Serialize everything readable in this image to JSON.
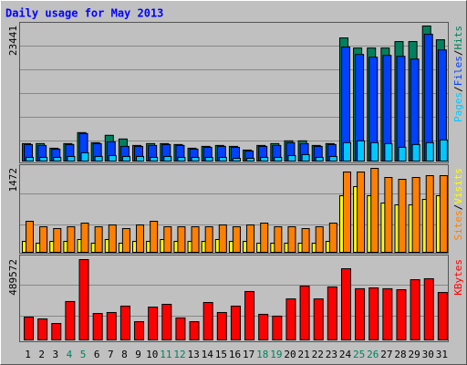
{
  "title": "Daily usage for May 2013",
  "legend_separator": "/",
  "chart_data": [
    {
      "type": "bar",
      "ylim": [
        0,
        23441
      ],
      "yticks": [
        23441
      ],
      "series": [
        {
          "name": "Hits",
          "color": "#00805c",
          "values": [
            3030,
            3030,
            2230,
            3030,
            4940,
            3190,
            4470,
            3830,
            2710,
            3030,
            3030,
            2870,
            2230,
            2550,
            2710,
            2550,
            1910,
            2710,
            3030,
            3510,
            3510,
            2710,
            3030,
            21370,
            19620,
            19620,
            19620,
            20740,
            20740,
            23441,
            21050
          ]
        },
        {
          "name": "Files",
          "color": "#0040ff",
          "values": [
            2870,
            2710,
            2070,
            2870,
            4780,
            3030,
            3350,
            2550,
            2550,
            2710,
            2870,
            2710,
            2070,
            2390,
            2550,
            2390,
            1750,
            2550,
            2710,
            3190,
            3030,
            2550,
            2870,
            19780,
            18500,
            18020,
            18340,
            18180,
            17700,
            22010,
            19300
          ]
        },
        {
          "name": "Pages",
          "color": "#00c8ff",
          "values": [
            640,
            640,
            640,
            800,
            1440,
            800,
            960,
            800,
            800,
            640,
            800,
            640,
            640,
            640,
            640,
            480,
            480,
            640,
            640,
            960,
            1120,
            640,
            800,
            3190,
            3510,
            3190,
            3030,
            2390,
            2870,
            3190,
            3670
          ]
        }
      ]
    },
    {
      "type": "bar",
      "ylim": [
        0,
        1472
      ],
      "yticks": [
        1472
      ],
      "series": [
        {
          "name": "Visits",
          "color": "#ffff00",
          "values": [
            192,
            160,
            192,
            192,
            224,
            160,
            224,
            160,
            192,
            192,
            224,
            192,
            192,
            192,
            224,
            192,
            192,
            160,
            160,
            160,
            160,
            160,
            192,
            992,
            1152,
            992,
            864,
            832,
            832,
            928,
            992
          ]
        },
        {
          "name": "Sites",
          "color": "#ff8000",
          "values": [
            544,
            448,
            416,
            448,
            512,
            448,
            480,
            416,
            480,
            544,
            448,
            448,
            448,
            448,
            480,
            448,
            480,
            512,
            448,
            448,
            416,
            448,
            512,
            1408,
            1408,
            1472,
            1312,
            1280,
            1312,
            1344,
            1344
          ]
        }
      ]
    },
    {
      "type": "bar",
      "ylim": [
        0,
        489572
      ],
      "yticks": [
        489572
      ],
      "categories": [
        "1",
        "2",
        "3",
        "4",
        "5",
        "6",
        "7",
        "8",
        "9",
        "10",
        "11",
        "12",
        "13",
        "14",
        "15",
        "16",
        "17",
        "18",
        "19",
        "20",
        "21",
        "22",
        "23",
        "24",
        "25",
        "26",
        "27",
        "28",
        "29",
        "30",
        "31"
      ],
      "category_colors": [
        "#000",
        "#000",
        "#000",
        "#00805c",
        "#00805c",
        "#000",
        "#000",
        "#000",
        "#000",
        "#000",
        "#00805c",
        "#00805c",
        "#000",
        "#000",
        "#000",
        "#000",
        "#000",
        "#00805c",
        "#00805c",
        "#000",
        "#000",
        "#000",
        "#000",
        "#000",
        "#00805c",
        "#00805c",
        "#000",
        "#000",
        "#000",
        "#000",
        "#000"
      ],
      "series": [
        {
          "name": "KBytes",
          "color": "#ff0000",
          "values": [
            139000,
            128000,
            100000,
            234000,
            489572,
            161000,
            167000,
            206000,
            111000,
            200000,
            217000,
            134000,
            111000,
            228000,
            167000,
            206000,
            295000,
            156000,
            145000,
            250000,
            328000,
            250000,
            323000,
            434000,
            312000,
            317000,
            312000,
            306000,
            367000,
            373000,
            289000
          ]
        }
      ]
    }
  ]
}
